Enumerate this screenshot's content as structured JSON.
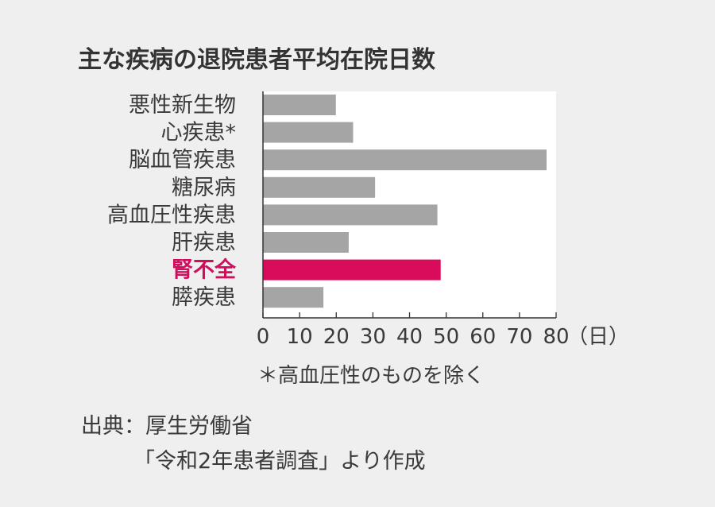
{
  "chart_data": {
    "type": "bar",
    "orientation": "horizontal",
    "title": "主な疾病の退院患者平均在院日数",
    "categories": [
      "悪性新生物",
      "心疾患*",
      "脳血管疾患",
      "糖尿病",
      "高血圧性疾患",
      "肝疾患",
      "腎不全",
      "膵疾患"
    ],
    "values": [
      19.9,
      24.6,
      77.4,
      30.6,
      47.6,
      23.4,
      48.5,
      16.5
    ],
    "highlight_category": "腎不全",
    "xlim": [
      0,
      80
    ],
    "xticks": [
      "0",
      "10",
      "20",
      "30",
      "40",
      "50",
      "60",
      "70",
      "80"
    ],
    "x_unit": "（日）",
    "note": "＊高血圧性のものを除く",
    "colors": {
      "bar": "#a5a5a6",
      "highlight": "#d90c5c",
      "plot_background": "#ffffff",
      "page_background": "#efefef",
      "axis": "#333333"
    }
  },
  "source": {
    "line1": "出典：厚生労働省",
    "line2": "「令和2年患者調査」より作成"
  }
}
